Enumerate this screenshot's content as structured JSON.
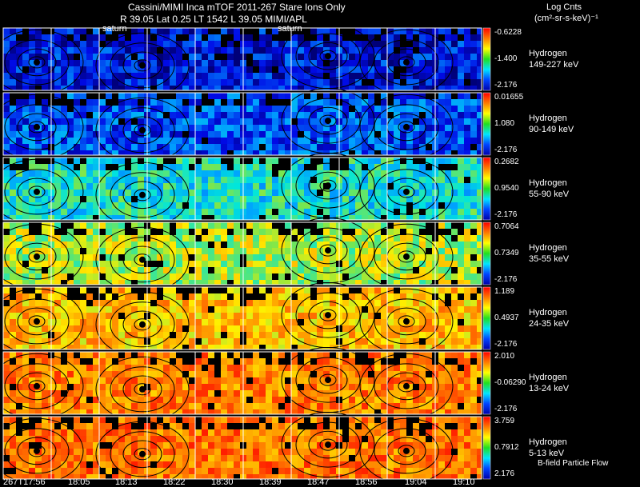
{
  "header": {
    "title": "Cassini/MIMI Inca mTOF  2011-267   Stare   Ions Only",
    "info": "R        39.05 Lat 0.25 LT 1542 L        39.05  MIMI/APL"
  },
  "units": {
    "title": "Log Cnts",
    "sub": "(cm²-sr-s-keV)⁻¹"
  },
  "saturn_labels": [
    "saturn",
    "saturn"
  ],
  "footer_note": "B-field Particle Flow",
  "time_labels": [
    "267T17:56",
    "18:05",
    "18:13",
    "18:22",
    "18:30",
    "18:39",
    "18:47",
    "18:56",
    "19:04",
    "19:10"
  ],
  "colors": {
    "background": "#000000",
    "grid": "#ffffff",
    "contour": "#000000",
    "colorbar": [
      "#ff0000",
      "#ff7a00",
      "#ffff00",
      "#20e020",
      "#00e5ff",
      "#0044ff",
      "#0000aa"
    ]
  },
  "chart_data": {
    "type": "heatmap",
    "title": "Cassini/MIMI Inca mTOF  2011-267   Stare   Ions Only",
    "colorbar_label": "Log Cnts (cm²-sr-s-keV)⁻¹",
    "time_ticks": [
      "267T17:56",
      "18:05",
      "18:13",
      "18:22",
      "18:30",
      "18:39",
      "18:47",
      "18:56",
      "19:04",
      "19:10"
    ],
    "contour_levels_deg": [
      30,
      60,
      90,
      120,
      150
    ],
    "series": [
      {
        "species": "Hydrogen",
        "energy": "149-227 keV",
        "cb_max": "-0.6228",
        "cb_mid": "-1.400",
        "cb_min": "-2.176",
        "level": 0.12
      },
      {
        "species": "Hydrogen",
        "energy": "90-149 keV",
        "cb_max": "0.01655",
        "cb_mid": "1.080",
        "cb_min": "-2.176",
        "level": 0.2
      },
      {
        "species": "Hydrogen",
        "energy": "55-90 keV",
        "cb_max": "0.2682",
        "cb_mid": "0.9540",
        "cb_min": "-2.176",
        "level": 0.42
      },
      {
        "species": "Hydrogen",
        "energy": "35-55 keV",
        "cb_max": "0.7064",
        "cb_mid": "0.7349",
        "cb_min": "-2.176",
        "level": 0.6
      },
      {
        "species": "Hydrogen",
        "energy": "24-35 keV",
        "cb_max": "1.189",
        "cb_mid": "0.4937",
        "cb_min": "-2.176",
        "level": 0.74
      },
      {
        "species": "Hydrogen",
        "energy": "13-24 keV",
        "cb_max": "2.010",
        "cb_mid": "-0.06290",
        "cb_min": "-2.176",
        "level": 0.84
      },
      {
        "species": "Hydrogen",
        "energy": "5-13 keV",
        "cb_max": "3.759",
        "cb_mid": "0.7912",
        "cb_min": "2.176",
        "level": 0.86
      }
    ]
  }
}
